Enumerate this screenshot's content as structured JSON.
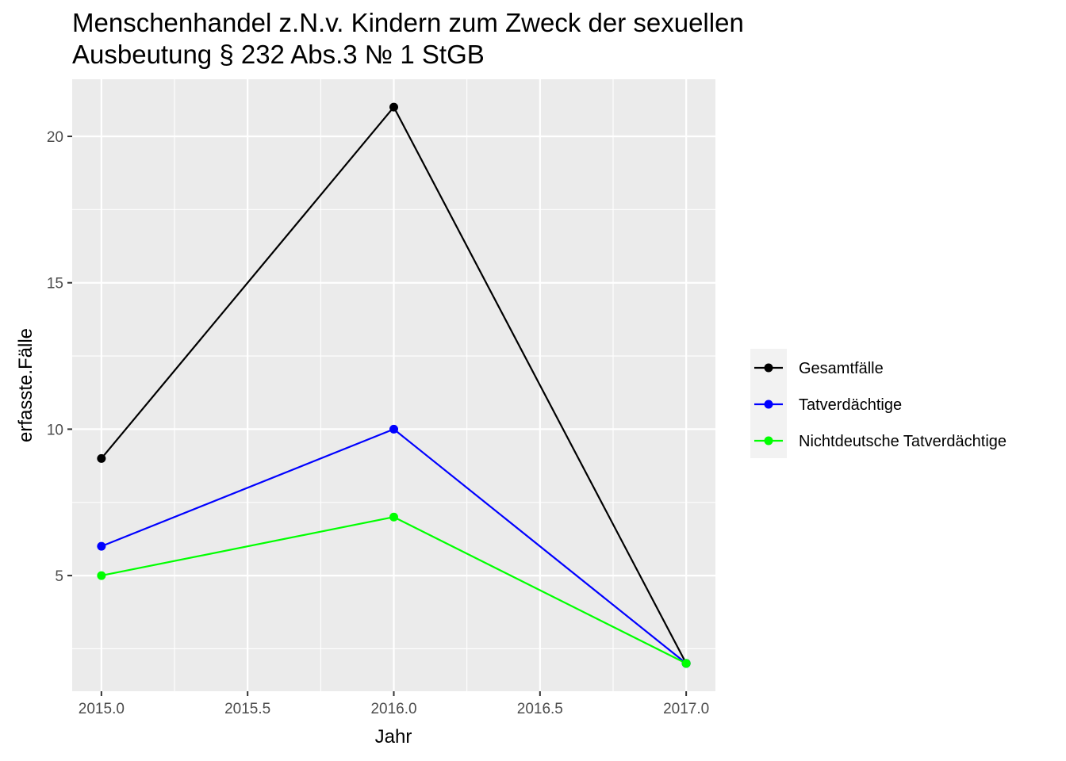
{
  "chart_data": {
    "type": "line",
    "title": [
      "Menschenhandel z.N.v. Kindern zum Zweck der sexuellen",
      "Ausbeutung § 232 Abs.3 № 1 StGB"
    ],
    "xlabel": "Jahr",
    "ylabel": "erfasste.Fälle",
    "x": [
      2015,
      2016,
      2017
    ],
    "xlim": [
      2014.9,
      2017.1
    ],
    "ylim": [
      1.05,
      21.95
    ],
    "x_ticks": [
      "2015.0",
      "2015.5",
      "2016.0",
      "2016.5",
      "2017.0"
    ],
    "y_ticks": [
      "5",
      "10",
      "15",
      "20"
    ],
    "grid": true,
    "legend_position": "right",
    "panel_background": "#ebebeb",
    "series": [
      {
        "name": "Gesamtfälle",
        "color": "#000000",
        "values": [
          9,
          21,
          2
        ]
      },
      {
        "name": "Tatverdächtige",
        "color": "#0000ff",
        "values": [
          6,
          10,
          2
        ]
      },
      {
        "name": "Nichtdeutsche Tatverdächtige",
        "color": "#00ff00",
        "values": [
          5,
          7,
          2
        ]
      }
    ]
  }
}
